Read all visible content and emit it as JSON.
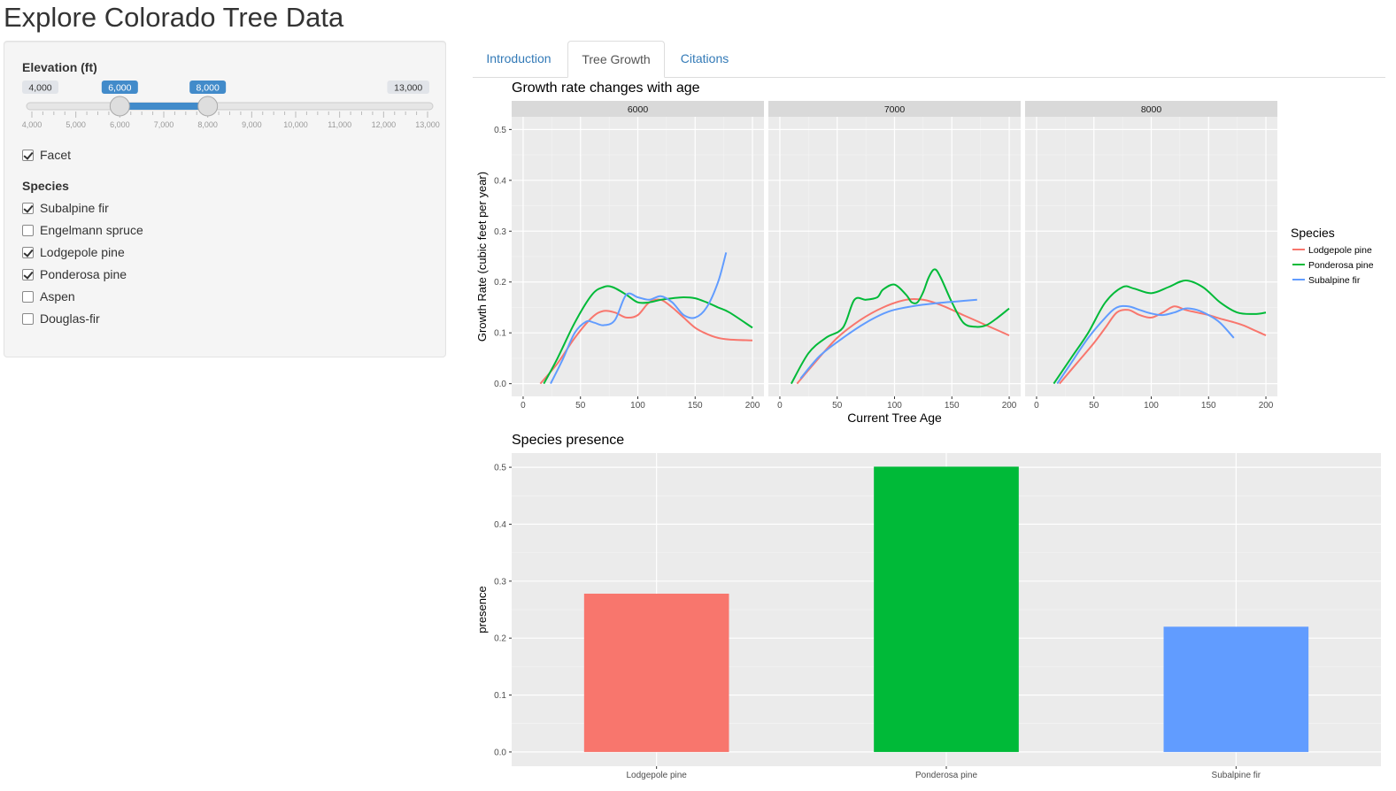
{
  "app": {
    "title": "Explore Colorado Tree Data"
  },
  "sidebar": {
    "elevation": {
      "label": "Elevation (ft)",
      "min_label": "4,000",
      "max_label": "13,000",
      "from_label": "6,000",
      "to_label": "8,000",
      "min": 4000,
      "max": 13000,
      "from": 6000,
      "to": 8000,
      "ticks": [
        "4,000",
        "5,000",
        "6,000",
        "7,000",
        "8,000",
        "9,000",
        "10,000",
        "11,000",
        "12,000",
        "13,000"
      ],
      "accent_color": "#428bca"
    },
    "facet": {
      "label": "Facet",
      "checked": true
    },
    "species": {
      "label": "Species",
      "items": [
        {
          "label": "Subalpine fir",
          "checked": true
        },
        {
          "label": "Engelmann spruce",
          "checked": false
        },
        {
          "label": "Lodgepole pine",
          "checked": true
        },
        {
          "label": "Ponderosa pine",
          "checked": true
        },
        {
          "label": "Aspen",
          "checked": false
        },
        {
          "label": "Douglas-fir",
          "checked": false
        }
      ]
    }
  },
  "tabs": [
    {
      "label": "Introduction",
      "active": false
    },
    {
      "label": "Tree Growth",
      "active": true
    },
    {
      "label": "Citations",
      "active": false
    }
  ],
  "chart_data": [
    {
      "type": "line",
      "title": "Growth rate changes with age",
      "xlabel": "Current Tree Age",
      "ylabel": "Growth Rate (cubic feet per year)",
      "xlim": [
        -10,
        210
      ],
      "ylim": [
        -0.025,
        0.525
      ],
      "xticks": [
        0,
        50,
        100,
        150,
        200
      ],
      "yticks": [
        0.0,
        0.1,
        0.2,
        0.3,
        0.4,
        0.5
      ],
      "grid": true,
      "legend": {
        "title": "Species",
        "position": "right"
      },
      "colors": {
        "Lodgepole pine": "#f8766d",
        "Ponderosa pine": "#00ba38",
        "Subalpine fir": "#619cff"
      },
      "facets": [
        {
          "label": "6000",
          "series": [
            {
              "name": "Lodgepole pine",
              "x": [
                15,
                30,
                45,
                60,
                70,
                80,
                90,
                100,
                110,
                120,
                130,
                140,
                150,
                160,
                170,
                180,
                200
              ],
              "y": [
                0.0,
                0.04,
                0.09,
                0.13,
                0.143,
                0.14,
                0.13,
                0.135,
                0.16,
                0.165,
                0.15,
                0.13,
                0.11,
                0.098,
                0.09,
                0.087,
                0.085
              ]
            },
            {
              "name": "Ponderosa pine",
              "x": [
                18,
                30,
                45,
                60,
                70,
                78,
                90,
                100,
                110,
                120,
                130,
                140,
                150,
                160,
                170,
                180,
                200
              ],
              "y": [
                0.0,
                0.05,
                0.12,
                0.175,
                0.19,
                0.19,
                0.175,
                0.16,
                0.16,
                0.165,
                0.168,
                0.17,
                0.168,
                0.16,
                0.15,
                0.14,
                0.11
              ]
            },
            {
              "name": "Subalpine fir",
              "x": [
                24,
                35,
                45,
                55,
                62,
                70,
                80,
                90,
                100,
                110,
                120,
                130,
                140,
                150,
                160,
                170,
                177
              ],
              "y": [
                0.0,
                0.05,
                0.1,
                0.122,
                0.12,
                0.115,
                0.125,
                0.175,
                0.17,
                0.165,
                0.172,
                0.16,
                0.135,
                0.13,
                0.15,
                0.2,
                0.258
              ]
            }
          ]
        },
        {
          "label": "7000",
          "series": [
            {
              "name": "Lodgepole pine",
              "x": [
                15,
                30,
                50,
                70,
                90,
                110,
                125,
                140,
                160,
                180,
                200
              ],
              "y": [
                0.0,
                0.04,
                0.09,
                0.125,
                0.15,
                0.165,
                0.165,
                0.155,
                0.135,
                0.115,
                0.095
              ]
            },
            {
              "name": "Ponderosa pine",
              "x": [
                10,
                25,
                40,
                55,
                65,
                75,
                85,
                90,
                100,
                110,
                115,
                120,
                125,
                130,
                135,
                140,
                150,
                160,
                170,
                180,
                190,
                200
              ],
              "y": [
                0.0,
                0.06,
                0.09,
                0.11,
                0.165,
                0.165,
                0.17,
                0.185,
                0.195,
                0.175,
                0.16,
                0.16,
                0.18,
                0.21,
                0.225,
                0.21,
                0.16,
                0.12,
                0.112,
                0.115,
                0.13,
                0.148
              ]
            },
            {
              "name": "Subalpine fir",
              "x": [
                18,
                35,
                55,
                75,
                95,
                115,
                135,
                155,
                172
              ],
              "y": [
                0.01,
                0.055,
                0.09,
                0.12,
                0.142,
                0.152,
                0.158,
                0.162,
                0.165
              ]
            }
          ]
        },
        {
          "label": "8000",
          "series": [
            {
              "name": "Lodgepole pine",
              "x": [
                20,
                35,
                50,
                60,
                70,
                80,
                90,
                100,
                110,
                120,
                130,
                140,
                150,
                160,
                170,
                180,
                190,
                200
              ],
              "y": [
                0.0,
                0.04,
                0.08,
                0.11,
                0.14,
                0.145,
                0.135,
                0.13,
                0.14,
                0.152,
                0.145,
                0.14,
                0.135,
                0.128,
                0.122,
                0.115,
                0.105,
                0.095
              ]
            },
            {
              "name": "Ponderosa pine",
              "x": [
                15,
                30,
                45,
                60,
                75,
                85,
                100,
                115,
                130,
                145,
                160,
                175,
                190,
                200
              ],
              "y": [
                0.0,
                0.05,
                0.1,
                0.16,
                0.19,
                0.187,
                0.178,
                0.19,
                0.203,
                0.19,
                0.16,
                0.14,
                0.137,
                0.14
              ]
            },
            {
              "name": "Subalpine fir",
              "x": [
                18,
                30,
                45,
                60,
                70,
                80,
                90,
                100,
                110,
                120,
                130,
                140,
                150,
                160,
                172
              ],
              "y": [
                0.0,
                0.04,
                0.09,
                0.13,
                0.15,
                0.152,
                0.145,
                0.138,
                0.135,
                0.14,
                0.148,
                0.145,
                0.135,
                0.12,
                0.09
              ]
            }
          ]
        }
      ]
    },
    {
      "type": "bar",
      "title": "Species presence",
      "xlabel": "",
      "ylabel": "presence",
      "categories": [
        "Lodgepole pine",
        "Ponderosa pine",
        "Subalpine fir"
      ],
      "values": [
        0.278,
        0.501,
        0.22
      ],
      "colors": [
        "#f8766d",
        "#00ba38",
        "#619cff"
      ],
      "ylim": [
        -0.025,
        0.525
      ],
      "yticks": [
        0.0,
        0.1,
        0.2,
        0.3,
        0.4,
        0.5
      ],
      "grid": true
    }
  ]
}
